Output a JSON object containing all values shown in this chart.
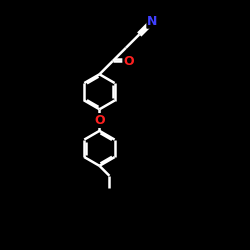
{
  "bg_color": "#000000",
  "bond_color": "#ffffff",
  "atom_colors": {
    "N": "#4040ff",
    "O": "#ff2020",
    "C": "#ffffff"
  },
  "bond_width": 1.8,
  "dbo": 0.08,
  "figsize": [
    2.5,
    2.5
  ],
  "dpi": 100
}
